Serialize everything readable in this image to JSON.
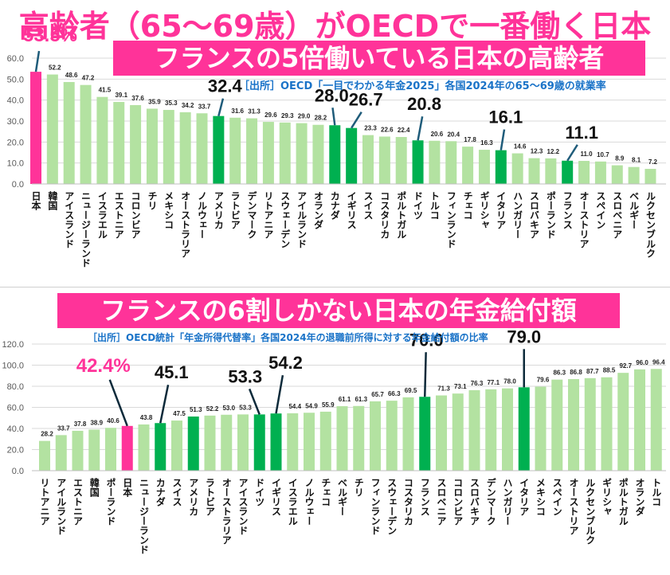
{
  "header": {
    "main_title": "高齢者（65～69歳）がOECDで一番働く日本",
    "banner1": "フランスの5倍働いている日本の高齢者",
    "source1": "［出所］OECD「一目でわかる年金2025」各国2024年の65～69歳の就業率",
    "banner2": "フランスの6割しかない日本の年金給付額",
    "source2": "［出所］OECD統計「年金所得代替率」各国2024年の退職前所得に対する年金給付額の比率"
  },
  "colors": {
    "accent_pink": "#ff3399",
    "highlight_green": "#00b050",
    "normal_bar": "#b3e2a1",
    "source_blue": "#1a73c8",
    "leader_line": "#1f5c7a"
  },
  "chart_data": [
    {
      "type": "bar",
      "title": "フランスの5倍働いている日本の高齢者",
      "subtitle": "［出所］OECD「一目でわかる年金2025」各国2024年の65～69歳の就業率",
      "xlabel": "",
      "ylabel": "",
      "ylim": [
        0,
        60
      ],
      "yticks": [
        "0.0",
        "10.0",
        "20.0",
        "30.0",
        "40.0",
        "50.0",
        "60.0"
      ],
      "grid": true,
      "legend": "none",
      "categories": [
        "日本",
        "韓国",
        "アイスランド",
        "ニュージーランド",
        "イスラエル",
        "エストニア",
        "コロンビア",
        "チリ",
        "メキシコ",
        "オーストラリア",
        "ノルウェー",
        "アメリカ",
        "ラトビア",
        "デンマーク",
        "リトアニア",
        "スウェーデン",
        "アイルランド",
        "オランダ",
        "カナダ",
        "イギリス",
        "スイス",
        "コスタリカ",
        "ポルトガル",
        "ドイツ",
        "トルコ",
        "フィンランド",
        "チェコ",
        "ギリシャ",
        "イタリア",
        "ハンガリー",
        "スロバキア",
        "ポーランド",
        "フランス",
        "オーストリア",
        "スペイン",
        "スロベニア",
        "ベルギー",
        "ルクセンブルク"
      ],
      "values": [
        53.5,
        52.2,
        48.6,
        47.2,
        41.5,
        39.1,
        37.6,
        35.9,
        35.3,
        34.2,
        33.7,
        32.4,
        31.6,
        31.3,
        29.6,
        29.3,
        29.0,
        28.2,
        28.0,
        26.7,
        23.3,
        22.6,
        22.4,
        20.8,
        20.6,
        20.4,
        17.8,
        16.3,
        16.1,
        14.6,
        12.3,
        12.2,
        11.1,
        11.0,
        10.7,
        8.9,
        8.1,
        7.2
      ],
      "highlight": {
        "日本": "pink",
        "アメリカ": "green",
        "カナダ": "green",
        "イギリス": "green",
        "ドイツ": "green",
        "イタリア": "green",
        "フランス": "green"
      },
      "callouts": [
        {
          "category": "日本",
          "text": "53.5%",
          "style": "pink"
        },
        {
          "category": "アメリカ",
          "text": "32.4",
          "style": "black"
        },
        {
          "category": "カナダ",
          "text": "28.0",
          "style": "black"
        },
        {
          "category": "イギリス",
          "text": "26.7",
          "style": "black"
        },
        {
          "category": "ドイツ",
          "text": "20.8",
          "style": "black"
        },
        {
          "category": "イタリア",
          "text": "16.1",
          "style": "black"
        },
        {
          "category": "フランス",
          "text": "11.1",
          "style": "black"
        }
      ]
    },
    {
      "type": "bar",
      "title": "フランスの6割しかない日本の年金給付額",
      "subtitle": "［出所］OECD統計「年金所得代替率」各国2024年の退職前所得に対する年金給付額の比率",
      "xlabel": "",
      "ylabel": "",
      "ylim": [
        0,
        120
      ],
      "yticks": [
        "0.0",
        "20.0",
        "40.0",
        "60.0",
        "80.0",
        "100.0",
        "120.0"
      ],
      "grid": true,
      "legend": "none",
      "categories": [
        "リトアニア",
        "アイルランド",
        "エストニア",
        "韓国",
        "ポーランド",
        "日本",
        "ニュージーランド",
        "カナダ",
        "スイス",
        "アメリカ",
        "ラトビア",
        "オーストラリア",
        "アイスランド",
        "ドイツ",
        "イギリス",
        "イスラエル",
        "ノルウェー",
        "チェコ",
        "ベルギー",
        "チリ",
        "フィンランド",
        "スウェーデン",
        "コスタリカ",
        "フランス",
        "スロベニア",
        "コロンビア",
        "スロバキア",
        "デンマーク",
        "ハンガリー",
        "イタリア",
        "メキシコ",
        "スペイン",
        "オーストリア",
        "ルクセンブルク",
        "ギリシャ",
        "ポルトガル",
        "オランダ",
        "トルコ"
      ],
      "values": [
        28.2,
        33.7,
        37.8,
        38.9,
        40.6,
        42.4,
        43.8,
        45.1,
        47.5,
        51.3,
        52.2,
        53.0,
        53.3,
        53.3,
        54.2,
        54.4,
        54.9,
        55.9,
        61.1,
        61.3,
        65.7,
        66.3,
        69.5,
        70.0,
        71.3,
        73.1,
        76.3,
        77.1,
        78.0,
        79.0,
        79.6,
        86.3,
        86.8,
        87.7,
        88.5,
        92.7,
        96.0,
        96.4
      ],
      "highlight": {
        "日本": "pink",
        "カナダ": "green",
        "アメリカ": "green",
        "ドイツ": "green",
        "イギリス": "green",
        "フランス": "green",
        "イタリア": "green"
      },
      "callouts": [
        {
          "category": "日本",
          "text": "42.4%",
          "style": "pink"
        },
        {
          "category": "カナダ",
          "text": "45.1",
          "style": "black"
        },
        {
          "category": "ドイツ",
          "text": "53.3",
          "style": "black"
        },
        {
          "category": "イギリス",
          "text": "54.2",
          "style": "black"
        },
        {
          "category": "フランス",
          "text": "70.0",
          "style": "black"
        },
        {
          "category": "イタリア",
          "text": "79.0",
          "style": "black"
        }
      ]
    }
  ]
}
